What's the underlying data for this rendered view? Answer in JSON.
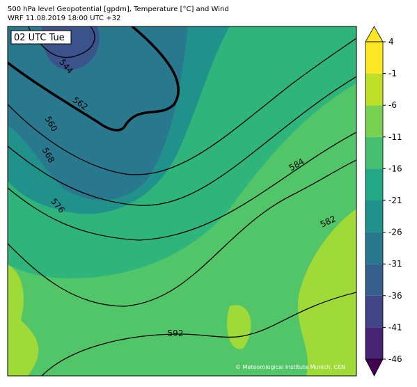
{
  "header": {
    "title": "500 hPa level Geopotential [gpdm], Temperature [°C] and Wind",
    "subtitle": "WRF 11.08.2019 18:00 UTC +32"
  },
  "map": {
    "time_label": "02 UTC Tue",
    "copyright": "© Meteorological Institute Munich, CEN",
    "contour_labels": [
      "544",
      "562",
      "560",
      "568",
      "576",
      "584",
      "582",
      "592"
    ]
  },
  "colorbar": {
    "ticks": [
      4,
      -1,
      -6,
      -11,
      -16,
      -21,
      -26,
      -31,
      -36,
      -41,
      -46
    ],
    "lim": [
      -46,
      4
    ],
    "colors": [
      "#440154",
      "#482475",
      "#414487",
      "#355f8d",
      "#2a788e",
      "#21918c",
      "#22a884",
      "#44bf70",
      "#7ad151",
      "#bddf26",
      "#fde725",
      "#fde725"
    ]
  }
}
